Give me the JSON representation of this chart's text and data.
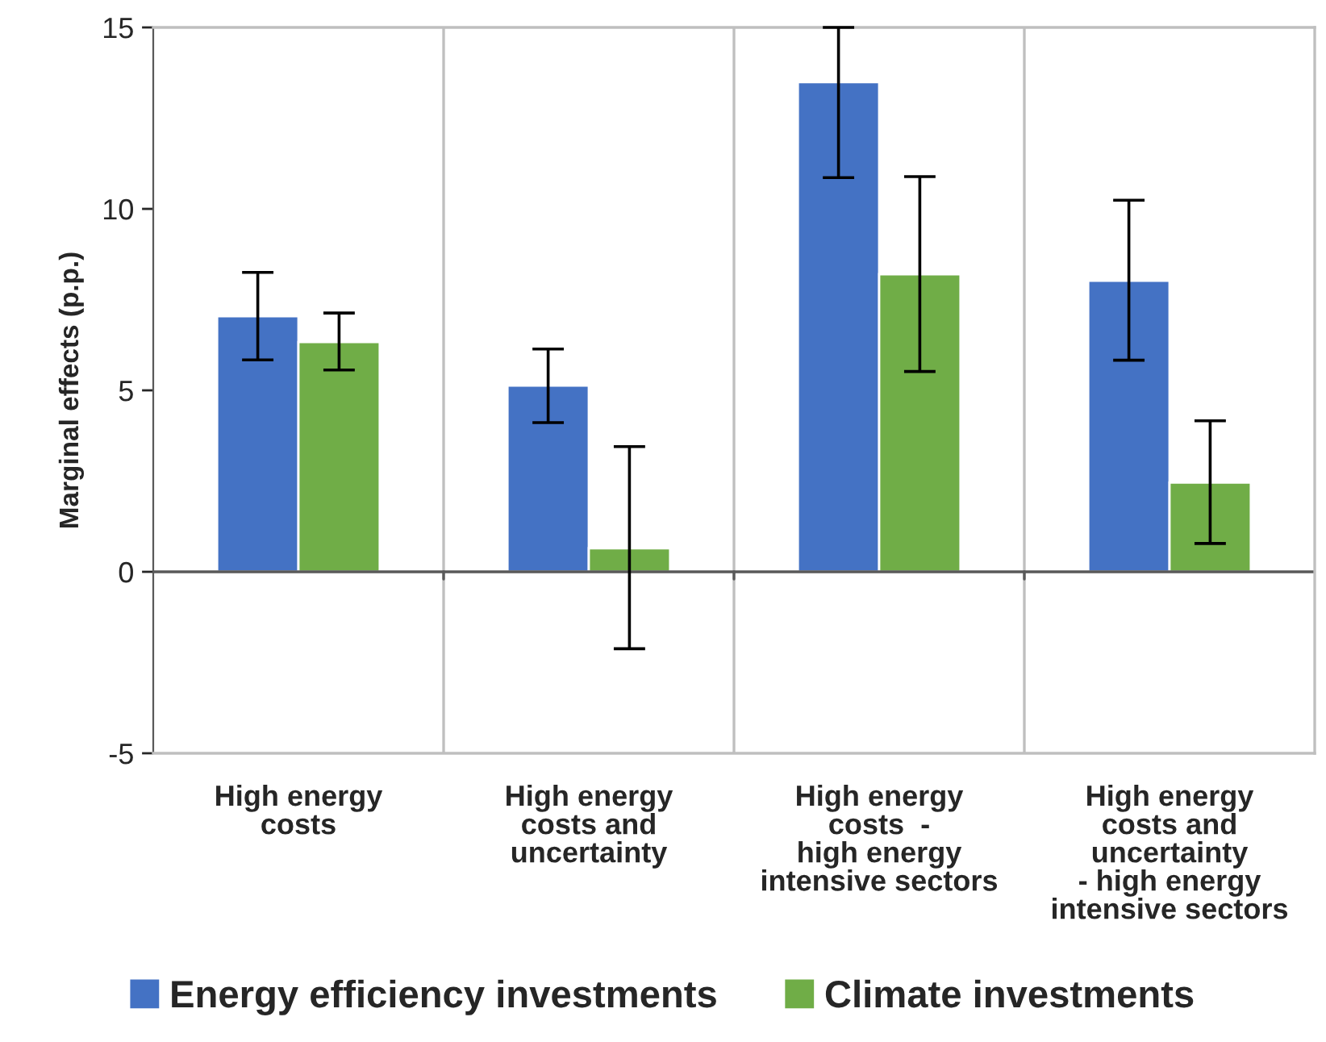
{
  "chart_data": {
    "type": "bar",
    "ylabel": "Marginal effects (p.p.)",
    "categories": [
      "High energy\ncosts",
      "High energy\ncosts and\nuncertainty",
      "High energy\ncosts  -\nhigh energy\nintensive sectors",
      "High energy\ncosts and\nuncertainty\n- high energy\nintensive sectors"
    ],
    "series": [
      {
        "name": "Energy efficiency investments",
        "color": "#4472c4",
        "values": [
          7.04,
          5.13,
          13.49,
          8.02
        ],
        "errors": [
          [
            5.84,
            8.25
          ],
          [
            4.11,
            6.14
          ],
          [
            10.86,
            15
          ],
          [
            5.83,
            10.24
          ]
        ]
      },
      {
        "name": "Climate investments",
        "color": "#70ad47",
        "values": [
          6.33,
          0.65,
          8.2,
          2.46
        ],
        "errors": [
          [
            5.56,
            7.13
          ],
          [
            -2.12,
            3.45
          ],
          [
            5.52,
            10.89
          ],
          [
            0.78,
            4.16
          ]
        ]
      }
    ],
    "ylim": [
      -5,
      15
    ],
    "yticks": [
      -5,
      0,
      5,
      10,
      15
    ],
    "grid": "x",
    "legend": "bottom"
  }
}
